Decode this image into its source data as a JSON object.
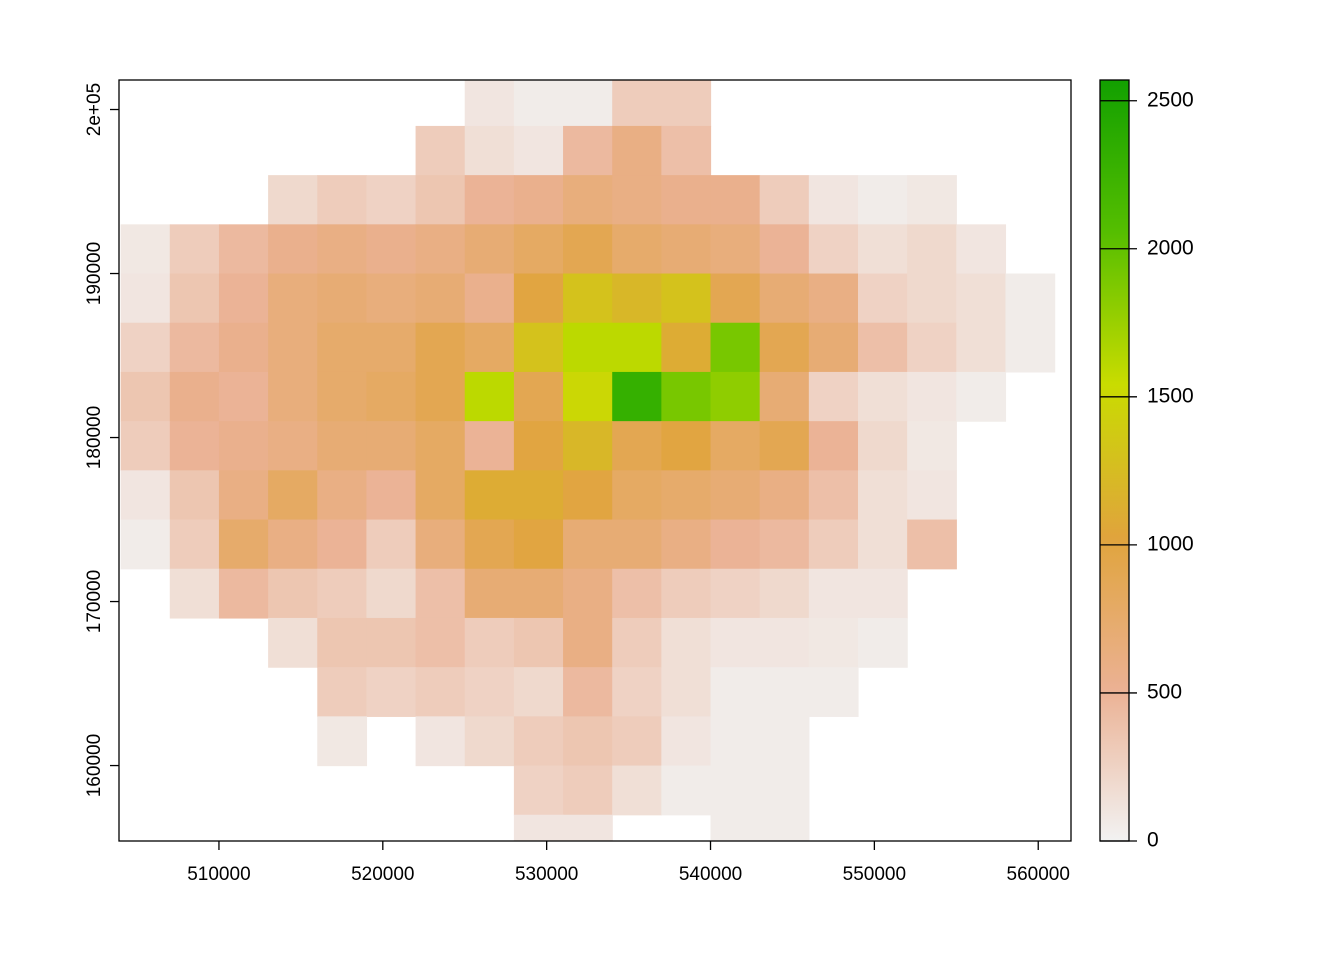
{
  "chart_data": {
    "type": "raster",
    "x": [
      505500,
      508500,
      511500,
      514500,
      517500,
      520500,
      523500,
      526500,
      529500,
      532500,
      535500,
      538500,
      541500,
      544500,
      547500,
      550500,
      553500,
      556500,
      559500
    ],
    "y": [
      200500,
      197500,
      194500,
      191500,
      188500,
      185500,
      182500,
      179500,
      176500,
      173500,
      170500,
      167500,
      164500,
      161500,
      158500,
      155500
    ],
    "values": [
      [
        null,
        null,
        null,
        null,
        null,
        null,
        null,
        100,
        50,
        50,
        300,
        300,
        null,
        null,
        null,
        null,
        null,
        null,
        null
      ],
      [
        null,
        null,
        null,
        null,
        null,
        null,
        300,
        150,
        100,
        450,
        600,
        400,
        null,
        null,
        null,
        null,
        null,
        null,
        null
      ],
      [
        null,
        null,
        null,
        200,
        300,
        250,
        350,
        500,
        550,
        650,
        600,
        550,
        550,
        300,
        100,
        50,
        80,
        null,
        null
      ],
      [
        80,
        300,
        450,
        550,
        600,
        550,
        600,
        700,
        800,
        900,
        750,
        700,
        650,
        500,
        250,
        150,
        200,
        100,
        null
      ],
      [
        100,
        350,
        500,
        650,
        700,
        650,
        700,
        550,
        1000,
        1300,
        1200,
        1300,
        900,
        700,
        600,
        250,
        200,
        150,
        50
      ],
      [
        250,
        450,
        550,
        650,
        750,
        750,
        900,
        800,
        1300,
        1600,
        1600,
        1100,
        1900,
        900,
        700,
        400,
        250,
        150,
        50
      ],
      [
        350,
        550,
        500,
        650,
        750,
        800,
        900,
        1600,
        900,
        1500,
        2300,
        1900,
        1800,
        700,
        250,
        150,
        100,
        50,
        null
      ],
      [
        300,
        500,
        550,
        600,
        700,
        700,
        800,
        500,
        1000,
        1200,
        900,
        1000,
        800,
        900,
        500,
        200,
        80,
        null,
        null
      ],
      [
        100,
        350,
        600,
        800,
        600,
        500,
        800,
        1100,
        1100,
        1000,
        800,
        750,
        700,
        600,
        400,
        150,
        100,
        null,
        null
      ],
      [
        50,
        300,
        750,
        600,
        500,
        300,
        650,
        900,
        1000,
        700,
        700,
        600,
        500,
        450,
        300,
        150,
        400,
        null,
        null
      ],
      [
        null,
        150,
        450,
        350,
        300,
        200,
        400,
        700,
        700,
        600,
        400,
        300,
        250,
        200,
        100,
        100,
        null,
        null,
        null
      ],
      [
        null,
        null,
        null,
        150,
        350,
        350,
        400,
        300,
        350,
        600,
        300,
        150,
        100,
        100,
        80,
        50,
        null,
        null,
        null
      ],
      [
        null,
        null,
        null,
        null,
        300,
        250,
        300,
        250,
        200,
        450,
        250,
        150,
        50,
        50,
        50,
        null,
        null,
        null,
        null
      ],
      [
        null,
        null,
        null,
        null,
        80,
        null,
        100,
        200,
        300,
        350,
        300,
        100,
        50,
        50,
        null,
        null,
        null,
        null,
        null
      ],
      [
        null,
        null,
        null,
        null,
        null,
        null,
        null,
        null,
        250,
        300,
        150,
        50,
        50,
        50,
        null,
        null,
        null,
        null,
        null
      ],
      [
        null,
        null,
        null,
        null,
        null,
        null,
        null,
        null,
        100,
        100,
        null,
        null,
        50,
        50,
        null,
        null,
        null,
        null,
        null
      ]
    ],
    "xlim": [
      503900,
      562000
    ],
    "ylim": [
      155400,
      201800
    ],
    "xticks": [
      510000,
      520000,
      530000,
      540000,
      550000,
      560000
    ],
    "yticks": [
      160000,
      170000,
      180000,
      190000,
      {
        "value": 200000,
        "label": "2e+05"
      }
    ],
    "zlim": [
      0,
      2570
    ],
    "zticks": [
      0,
      500,
      1000,
      1500,
      2000,
      2500
    ],
    "colors": [
      "#F2F2F2",
      "#EBB193",
      "#E0A43C",
      "#C9DC00",
      "#55BE00",
      "#12A000"
    ]
  }
}
